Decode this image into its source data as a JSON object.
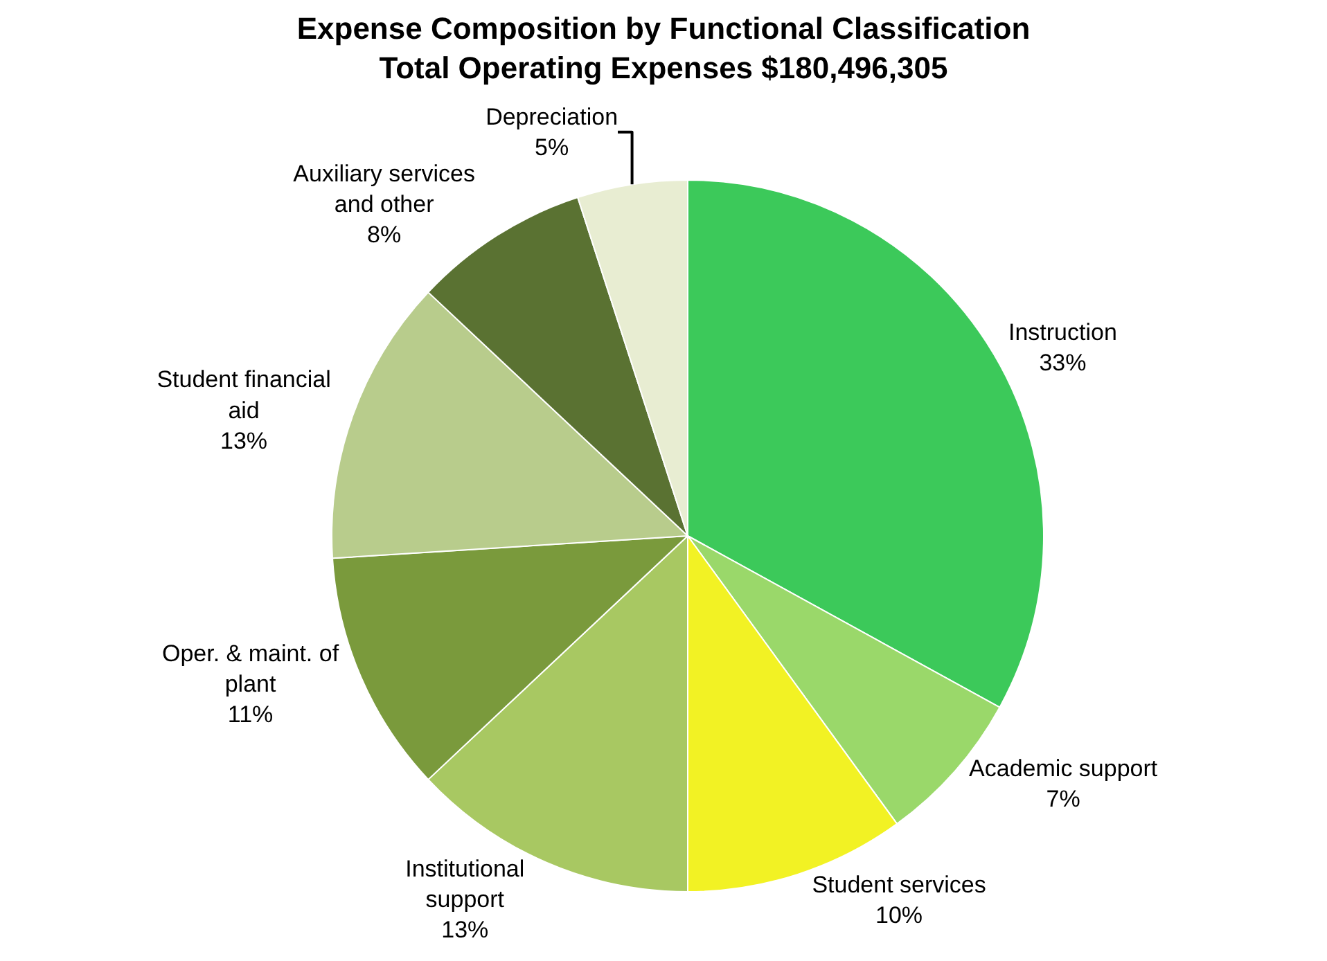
{
  "chart_data": {
    "type": "pie",
    "title": "Expense Composition by Functional Classification",
    "subtitle": "Total Operating Expenses $180,496,305",
    "categories": [
      "Instruction",
      "Academic support",
      "Student services",
      "Institutional support",
      "Oper. & maint. of plant",
      "Student financial aid",
      "Auxiliary services and other",
      "Depreciation"
    ],
    "values": [
      33,
      7,
      10,
      13,
      11,
      13,
      8,
      5
    ],
    "value_labels": [
      "33%",
      "7%",
      "10%",
      "13%",
      "11%",
      "13%",
      "8%",
      "5%"
    ],
    "colors": [
      "#3cc95a",
      "#9ad86a",
      "#f2f224",
      "#a8c862",
      "#7a9a3c",
      "#b8cc8c",
      "#5a7232",
      "#e8edd2"
    ],
    "legend": false
  }
}
